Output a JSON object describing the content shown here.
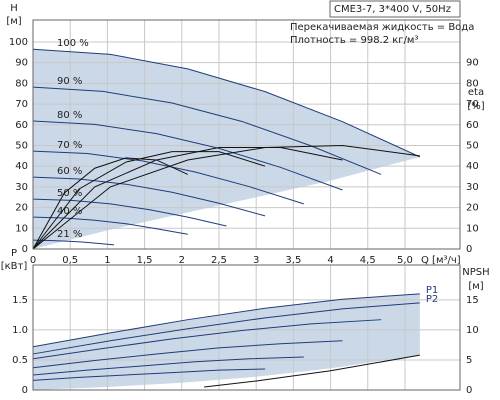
{
  "chart_data": [
    {
      "type": "line",
      "title": "CME3-7, 3*400 V, 50Hz",
      "subtitle": [
        "Перекачиваемая жидкость = Вода",
        "Плотность = 998.2 кг/м³"
      ],
      "ylabel": [
        "H",
        "[м]"
      ],
      "y2label": [
        "eta",
        "[%]"
      ],
      "xlabel": "Q [м³/ч]",
      "label_at": "start",
      "xlim": [
        0,
        5.74
      ],
      "ylim": [
        0,
        110.6
      ],
      "y2lim": [
        0,
        110.6
      ],
      "xticks": [
        0,
        {
          "value": 0.5,
          "label": "0,5"
        },
        1,
        {
          "value": 1.5,
          "label": "1,5"
        },
        2,
        {
          "value": 2.5,
          "label": "2,5"
        },
        3,
        {
          "value": 3.5,
          "label": "3,5"
        },
        4,
        {
          "value": 4.5,
          "label": "4,5"
        },
        {
          "value": 5,
          "label": "5,0"
        }
      ],
      "yticks": [
        0,
        10,
        20,
        30,
        40,
        50,
        60,
        70,
        80,
        90,
        100
      ],
      "y2ticks": [
        0,
        10,
        20,
        30,
        40,
        50,
        60,
        70,
        80,
        90
      ],
      "grid": true,
      "area_color": "#cbd8e8",
      "area_lower": {
        "x": [
          0,
          1,
          2,
          3,
          4,
          5.2
        ],
        "values": [
          0,
          9,
          17,
          25,
          33,
          44.5
        ]
      },
      "series": [
        {
          "name": "100 %",
          "color": "#1f3d7a",
          "x": [
            0,
            1.04,
            2.08,
            3.12,
            4.16,
            5.2
          ],
          "values": [
            96.5,
            94,
            87,
            76,
            61.5,
            44.5
          ]
        },
        {
          "name": "90 %",
          "color": "#1f3d7a",
          "x": [
            0,
            0.94,
            1.87,
            2.81,
            3.74,
            4.68
          ],
          "values": [
            78.2,
            76.1,
            70.5,
            61.6,
            49.8,
            36
          ]
        },
        {
          "name": "80 %",
          "color": "#1f3d7a",
          "x": [
            0,
            0.83,
            1.66,
            2.5,
            3.33,
            4.16
          ],
          "values": [
            61.8,
            60.2,
            55.7,
            48.6,
            39.4,
            28.5
          ]
        },
        {
          "name": "70 %",
          "color": "#1f3d7a",
          "x": [
            0,
            0.73,
            1.46,
            2.18,
            2.91,
            3.64
          ],
          "values": [
            47.3,
            46.1,
            42.6,
            37.2,
            30.1,
            21.8
          ]
        },
        {
          "name": "60 %",
          "color": "#1f3d7a",
          "x": [
            0,
            0.62,
            1.25,
            1.87,
            2.5,
            3.12
          ],
          "values": [
            34.7,
            33.8,
            31.3,
            27.4,
            22.1,
            16
          ]
        },
        {
          "name": "50 %",
          "color": "#1f3d7a",
          "x": [
            0,
            0.52,
            1.04,
            1.56,
            2.08,
            2.6
          ],
          "values": [
            24.1,
            23.5,
            21.8,
            19,
            15.4,
            11.1
          ]
        },
        {
          "name": "40 %",
          "color": "#1f3d7a",
          "x": [
            0,
            0.42,
            0.83,
            1.25,
            1.66,
            2.08
          ],
          "values": [
            15.4,
            15,
            13.9,
            12.2,
            9.8,
            7.1
          ]
        },
        {
          "name": "21 %",
          "color": "#1f3d7a",
          "x": [
            0,
            0.22,
            0.44,
            0.66,
            0.87,
            1.09
          ],
          "values": [
            4.3,
            4.1,
            3.8,
            3.4,
            2.7,
            2
          ]
        },
        {
          "color": "#111111",
          "axis": "y2",
          "x": [
            0,
            1.04,
            2.08,
            3.12,
            4.16,
            5.2
          ],
          "values": [
            0,
            30,
            43,
            49,
            50,
            45
          ]
        },
        {
          "color": "#111111",
          "axis": "y2",
          "x": [
            0,
            0.83,
            1.66,
            2.5,
            3.33,
            4.16
          ],
          "values": [
            0,
            30,
            43,
            49,
            49,
            43
          ]
        },
        {
          "color": "#111111",
          "axis": "y2",
          "x": [
            0,
            0.62,
            1.25,
            1.87,
            2.5,
            3.12
          ],
          "values": [
            0,
            29,
            42,
            47,
            47,
            40
          ]
        },
        {
          "color": "#111111",
          "axis": "y2",
          "x": [
            0,
            0.42,
            0.83,
            1.25,
            1.66,
            2.08
          ],
          "values": [
            0,
            27,
            39,
            44,
            43,
            36
          ]
        }
      ]
    },
    {
      "type": "line",
      "ylabel": [
        "P",
        "[кВт]"
      ],
      "y2label": [
        "NPSH",
        "[м]"
      ],
      "label_at": "end",
      "xlim": [
        0,
        5.74
      ],
      "ylim": [
        0,
        2.08
      ],
      "y2lim": [
        0,
        20.8
      ],
      "yticks": [
        0,
        0.5,
        {
          "value": 1,
          "label": "1.0"
        },
        1.5
      ],
      "y2ticks": [
        0,
        5,
        10,
        15
      ],
      "grid": true,
      "area_color": "#cbd8e8",
      "area_lower": {
        "x": [
          0,
          1,
          2,
          3,
          4,
          5.2
        ],
        "values": [
          0,
          0.05,
          0.12,
          0.22,
          0.36,
          0.58
        ]
      },
      "series": [
        {
          "name": "P1",
          "color": "#1f3d7a",
          "x": [
            0,
            1.04,
            2.08,
            3.12,
            4.16,
            5.2
          ],
          "values": [
            0.72,
            0.95,
            1.17,
            1.36,
            1.51,
            1.6
          ]
        },
        {
          "name": "P2",
          "color": "#1f3d7a",
          "x": [
            0,
            1.04,
            2.08,
            3.12,
            4.16,
            5.2
          ],
          "values": [
            0.6,
            0.82,
            1.02,
            1.2,
            1.35,
            1.45
          ]
        },
        {
          "color": "#1f3d7a",
          "x": [
            0,
            0.94,
            1.87,
            2.81,
            3.74,
            4.68
          ],
          "values": [
            0.52,
            0.69,
            0.85,
            0.99,
            1.1,
            1.17
          ]
        },
        {
          "color": "#1f3d7a",
          "x": [
            0,
            0.83,
            1.66,
            2.5,
            3.33,
            4.16
          ],
          "values": [
            0.37,
            0.49,
            0.6,
            0.7,
            0.77,
            0.82
          ]
        },
        {
          "color": "#1f3d7a",
          "x": [
            0,
            0.73,
            1.46,
            2.18,
            2.91,
            3.64
          ],
          "values": [
            0.25,
            0.33,
            0.4,
            0.47,
            0.52,
            0.55
          ]
        },
        {
          "color": "#1f3d7a",
          "x": [
            0,
            0.62,
            1.25,
            1.87,
            2.5,
            3.12
          ],
          "values": [
            0.16,
            0.21,
            0.25,
            0.29,
            0.33,
            0.35
          ]
        },
        {
          "color": "#111111",
          "axis": "y2",
          "x": [
            2.3,
            3,
            4,
            5.2
          ],
          "values": [
            0.5,
            1.5,
            3.2,
            5.8
          ]
        }
      ]
    }
  ]
}
